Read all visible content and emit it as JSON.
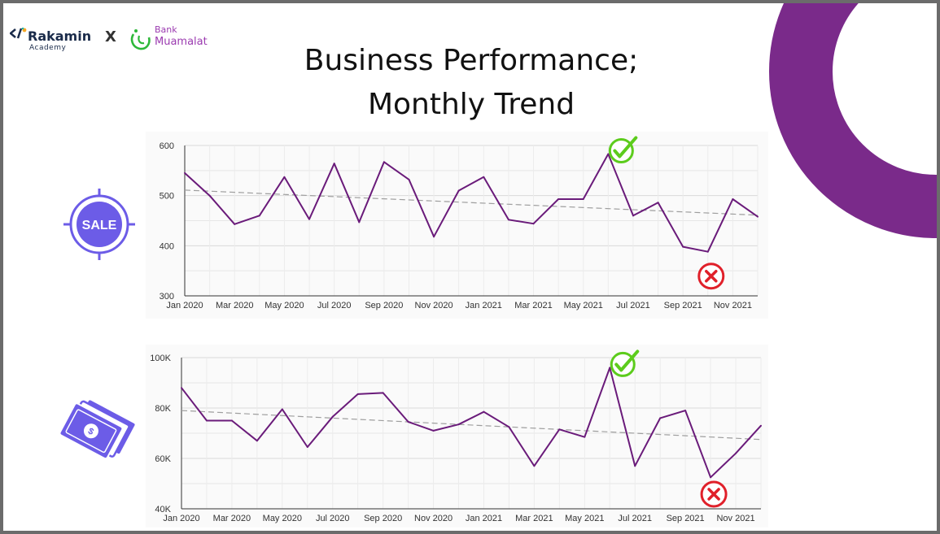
{
  "header": {
    "brand1_name": "Rakamin",
    "brand1_sub": "Academy",
    "separator": "X",
    "brand2_line1": "Bank",
    "brand2_line2": "Muamalat",
    "title_line1": "Business Performance;",
    "title_line2": "Monthly Trend"
  },
  "icons": {
    "sale_badge_label": "SALE",
    "sale_icon": "sale-badge-icon",
    "money_icon": "money-bills-icon",
    "good_mark": "green-check-icon",
    "bad_mark": "red-x-icon"
  },
  "colors": {
    "accent_purple": "#7a2a8a",
    "series_line": "#6a1b7a",
    "trend_line": "#9e9e9e",
    "icon_purple": "#6c5ce7",
    "check_green": "#5ccc1c",
    "cross_red": "#e0202a"
  },
  "chart_data": [
    {
      "type": "line",
      "title": "",
      "x": [
        "Jan 2020",
        "Feb 2020",
        "Mar 2020",
        "Apr 2020",
        "May 2020",
        "Jun 2020",
        "Jul 2020",
        "Aug 2020",
        "Sep 2020",
        "Oct 2020",
        "Nov 2020",
        "Dec 2020",
        "Jan 2021",
        "Feb 2021",
        "Mar 2021",
        "Apr 2021",
        "May 2021",
        "Jun 2021",
        "Jul 2021",
        "Aug 2021",
        "Sep 2021",
        "Oct 2021",
        "Nov 2021",
        "Dec 2021"
      ],
      "x_tick_labels": [
        "Jan 2020",
        "Mar 2020",
        "May 2020",
        "Jul 2020",
        "Sep 2020",
        "Nov 2020",
        "Jan 2021",
        "Mar 2021",
        "May 2021",
        "Jul 2021",
        "Sep 2021",
        "Nov 2021"
      ],
      "series": [
        {
          "values": [
            545,
            500,
            443,
            460,
            537,
            453,
            564,
            447,
            567,
            532,
            418,
            510,
            537,
            452,
            444,
            493,
            493,
            583,
            460,
            486,
            398,
            388,
            493,
            458
          ]
        }
      ],
      "trendline": {
        "start": 511,
        "end": 461
      },
      "ylim": [
        300,
        600
      ],
      "y_ticks": [
        300,
        400,
        500,
        600
      ],
      "y_tick_labels": [
        "300",
        "400",
        "500",
        "600"
      ],
      "grid": true,
      "annotations": {
        "max_index": 17,
        "min_index": 21
      }
    },
    {
      "type": "line",
      "title": "",
      "x": [
        "Jan 2020",
        "Feb 2020",
        "Mar 2020",
        "Apr 2020",
        "May 2020",
        "Jun 2020",
        "Jul 2020",
        "Aug 2020",
        "Sep 2020",
        "Oct 2020",
        "Nov 2020",
        "Dec 2020",
        "Jan 2021",
        "Feb 2021",
        "Mar 2021",
        "Apr 2021",
        "May 2021",
        "Jun 2021",
        "Jul 2021",
        "Aug 2021",
        "Sep 2021",
        "Oct 2021",
        "Nov 2021",
        "Dec 2021"
      ],
      "x_tick_labels": [
        "Jan 2020",
        "Mar 2020",
        "May 2020",
        "Jul 2020",
        "Sep 2020",
        "Nov 2020",
        "Jan 2021",
        "Mar 2021",
        "May 2021",
        "Jul 2021",
        "Sep 2021",
        "Nov 2021"
      ],
      "series": [
        {
          "values": [
            88000,
            75000,
            75000,
            67000,
            79500,
            64500,
            76500,
            85500,
            86000,
            74500,
            71000,
            73500,
            78500,
            72500,
            57000,
            71500,
            68500,
            96000,
            57000,
            76000,
            79000,
            52500,
            62000,
            73000
          ]
        }
      ],
      "trendline": {
        "start": 79000,
        "end": 67500
      },
      "ylim": [
        40000,
        100000
      ],
      "y_ticks": [
        40000,
        60000,
        80000,
        100000
      ],
      "y_tick_labels": [
        "40K",
        "60K",
        "80K",
        "100K"
      ],
      "grid": true,
      "annotations": {
        "max_index": 17,
        "min_index": 21
      }
    }
  ]
}
